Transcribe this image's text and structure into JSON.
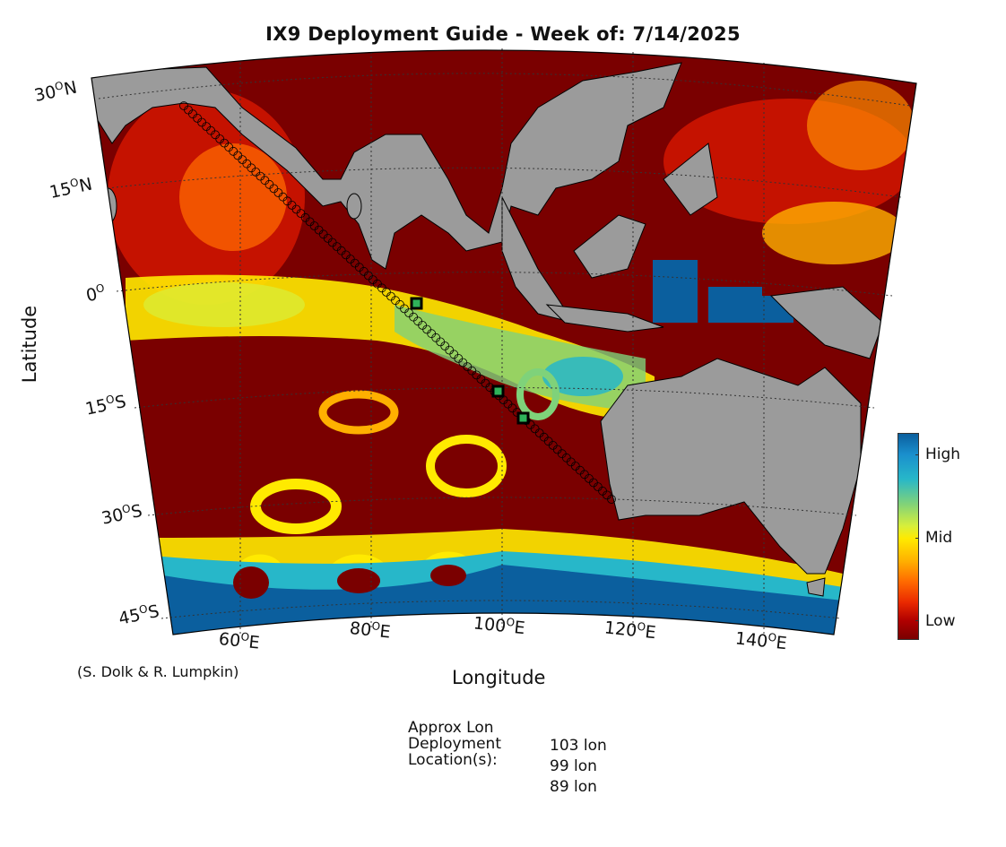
{
  "title": "IX9 Deployment Guide - Week of: 7/14/2025",
  "map": {
    "xlabel": "Longitude",
    "ylabel": "Latitude",
    "lat_labels": [
      {
        "deg": "30",
        "hemi": "N"
      },
      {
        "deg": "15",
        "hemi": "N"
      },
      {
        "deg": "0",
        "hemi": ""
      },
      {
        "deg": "15",
        "hemi": "S"
      },
      {
        "deg": "30",
        "hemi": "S"
      },
      {
        "deg": "45",
        "hemi": "S"
      }
    ],
    "lon_labels": [
      {
        "deg": "60",
        "hemi": "E"
      },
      {
        "deg": "80",
        "hemi": "E"
      },
      {
        "deg": "100",
        "hemi": "E"
      },
      {
        "deg": "120",
        "hemi": "E"
      },
      {
        "deg": "140",
        "hemi": "E"
      }
    ],
    "credit": "(S. Dolk & R. Lumpkin)",
    "region": {
      "lon_range": [
        50,
        150
      ],
      "lat_range": [
        -47,
        30
      ]
    },
    "colors": {
      "land": "#9b9b9b",
      "low": "#7a0000",
      "mid": "#ffea00",
      "high": "#0b5f9e"
    }
  },
  "colorbar": {
    "high": "High",
    "mid": "Mid",
    "low": "Low"
  },
  "deployment": {
    "caption_line1": "Approx Lon",
    "caption_line2": "Deployment",
    "caption_line3": "Location(s):",
    "values": [
      "103 lon",
      "99 lon",
      "89 lon"
    ]
  }
}
